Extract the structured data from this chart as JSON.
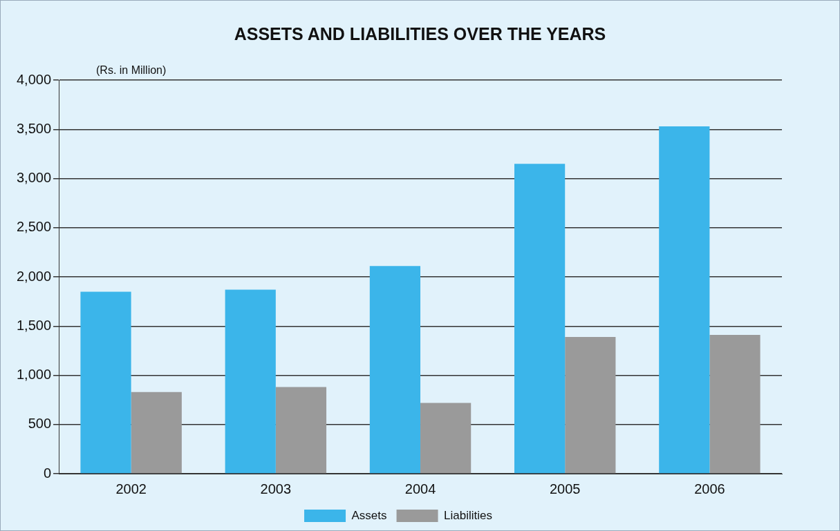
{
  "chart_data": {
    "type": "bar",
    "title": "ASSETS AND LIABILITIES OVER THE YEARS",
    "ylabel": "(Rs. in Million)",
    "categories": [
      "2002",
      "2003",
      "2004",
      "2005",
      "2006"
    ],
    "series": [
      {
        "name": "Assets",
        "color": "#3bb5ea",
        "values": [
          1850,
          1870,
          2110,
          3150,
          3530
        ]
      },
      {
        "name": "Liabilities",
        "color": "#9a9a9a",
        "values": [
          830,
          880,
          720,
          1390,
          1410
        ]
      }
    ],
    "ylim": [
      0,
      4000
    ],
    "yticks": [
      {
        "value": 0,
        "label": "0"
      },
      {
        "value": 500,
        "label": "500"
      },
      {
        "value": 1000,
        "label": "1,000"
      },
      {
        "value": 1500,
        "label": "1,500"
      },
      {
        "value": 2000,
        "label": "2,000"
      },
      {
        "value": 2500,
        "label": "2,500"
      },
      {
        "value": 3000,
        "label": "3,000"
      },
      {
        "value": 3500,
        "label": "3,500"
      },
      {
        "value": 4000,
        "label": "4,000"
      }
    ],
    "grid": "y",
    "legend": "bottom"
  }
}
